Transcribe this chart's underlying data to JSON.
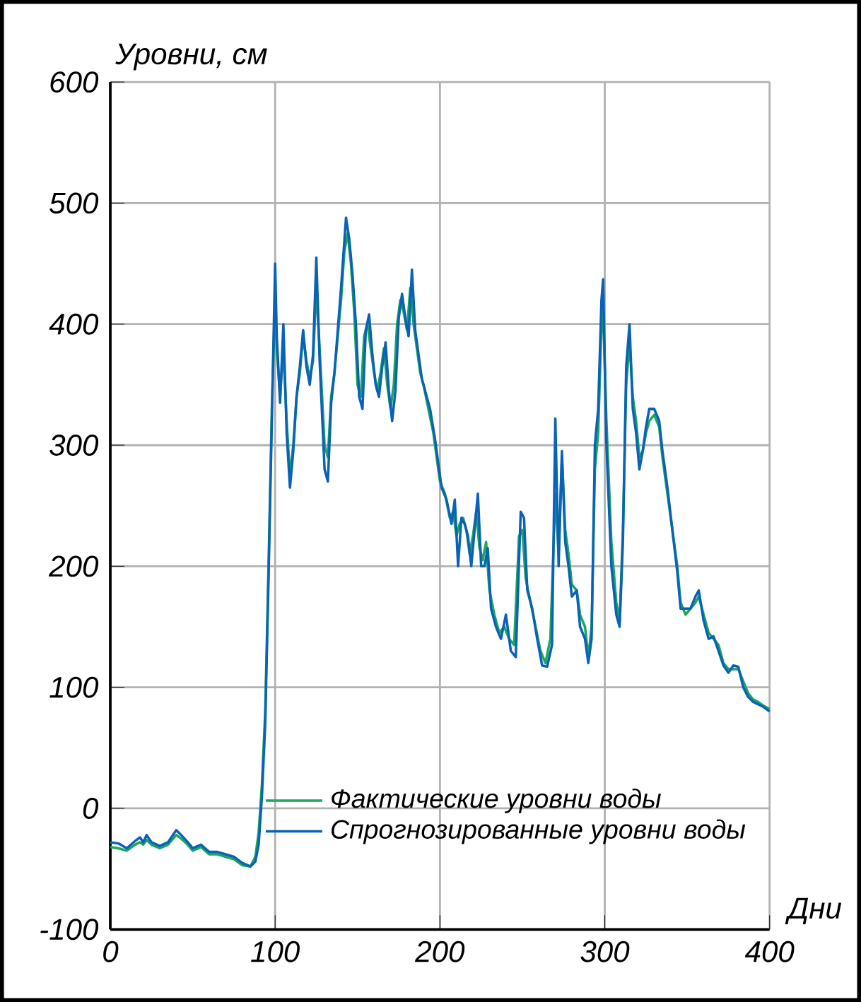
{
  "chart_data": {
    "type": "line",
    "ylabel": "Уровни, см",
    "xlabel": "Дни",
    "xlim": [
      0,
      400
    ],
    "xticks": [
      0,
      100,
      200,
      300,
      400
    ],
    "ylim": [
      -100,
      600
    ],
    "yticks": [
      -100,
      0,
      100,
      200,
      300,
      400,
      500,
      600
    ],
    "grid": true,
    "legend": "bottom right",
    "series": [
      {
        "name": "Фактические уровни воды",
        "color": "#1aa85a",
        "x": [
          0,
          5,
          10,
          15,
          18,
          20,
          22,
          25,
          30,
          35,
          40,
          43,
          47,
          50,
          55,
          60,
          65,
          70,
          75,
          80,
          85,
          88,
          90,
          92,
          94,
          96,
          98,
          100,
          101,
          103,
          105,
          107,
          109,
          111,
          113,
          115,
          117,
          119,
          121,
          123,
          125,
          127,
          130,
          132,
          134,
          136,
          138,
          140,
          142,
          144,
          146,
          148,
          150,
          152,
          154,
          156,
          158,
          160,
          162,
          164,
          166,
          168,
          170,
          172,
          174,
          176,
          178,
          180,
          182,
          184,
          186,
          188,
          190,
          193,
          196,
          198,
          200,
          203,
          206,
          208,
          210,
          212,
          214,
          216,
          218,
          220,
          222,
          224,
          226,
          228,
          230,
          233,
          236,
          239,
          242,
          245,
          248,
          250,
          252,
          255,
          258,
          261,
          264,
          267,
          270,
          272,
          274,
          276,
          278,
          280,
          283,
          285,
          288,
          290,
          292,
          294,
          296,
          298,
          299,
          301,
          304,
          307,
          309,
          311,
          313,
          315,
          317,
          319,
          321,
          323,
          325,
          327,
          330,
          333,
          335,
          338,
          341,
          344,
          346,
          349,
          352,
          355,
          357,
          360,
          363,
          366,
          369,
          372,
          375,
          378,
          381,
          384,
          387,
          390,
          393,
          396,
          400
        ],
        "values": [
          -32,
          -33,
          -35,
          -30,
          -28,
          -30,
          -26,
          -30,
          -33,
          -30,
          -22,
          -25,
          -30,
          -35,
          -32,
          -38,
          -38,
          -40,
          -42,
          -47,
          -48,
          -40,
          -20,
          20,
          80,
          200,
          330,
          420,
          380,
          340,
          380,
          320,
          275,
          300,
          340,
          360,
          390,
          370,
          355,
          370,
          430,
          380,
          300,
          290,
          340,
          360,
          390,
          420,
          460,
          475,
          450,
          410,
          350,
          340,
          390,
          400,
          380,
          360,
          345,
          360,
          380,
          350,
          330,
          350,
          400,
          420,
          410,
          395,
          430,
          400,
          380,
          360,
          350,
          330,
          310,
          290,
          270,
          260,
          240,
          245,
          225,
          235,
          240,
          230,
          210,
          225,
          245,
          215,
          205,
          220,
          180,
          160,
          145,
          150,
          140,
          135,
          225,
          230,
          190,
          170,
          150,
          130,
          120,
          140,
          260,
          210,
          290,
          230,
          210,
          185,
          180,
          160,
          150,
          125,
          150,
          280,
          310,
          400,
          410,
          320,
          220,
          170,
          155,
          230,
          350,
          385,
          340,
          320,
          290,
          295,
          310,
          320,
          325,
          315,
          290,
          260,
          230,
          200,
          170,
          160,
          165,
          170,
          175,
          160,
          145,
          140,
          135,
          120,
          115,
          115,
          115,
          105,
          95,
          90,
          88,
          85,
          82
        ]
      },
      {
        "name": "Спрогнозированные уровни воды",
        "color": "#0a62b8",
        "x": [
          0,
          5,
          10,
          15,
          18,
          20,
          22,
          25,
          30,
          35,
          40,
          43,
          47,
          50,
          55,
          60,
          65,
          70,
          75,
          80,
          85,
          88,
          90,
          92,
          94,
          96,
          98,
          100,
          101,
          103,
          105,
          107,
          109,
          111,
          113,
          115,
          117,
          119,
          121,
          123,
          125,
          127,
          130,
          132,
          134,
          136,
          138,
          140,
          143,
          145,
          147,
          149,
          151,
          153,
          155,
          157,
          159,
          161,
          163,
          165,
          167,
          169,
          171,
          173,
          175,
          177,
          179,
          181,
          183,
          185,
          187,
          189,
          191,
          194,
          197,
          199,
          201,
          204,
          207,
          209,
          211,
          213,
          215,
          217,
          219,
          221,
          223,
          225,
          227,
          229,
          231,
          234,
          237,
          240,
          243,
          246,
          249,
          251,
          253,
          256,
          259,
          262,
          265,
          268,
          270,
          272,
          274,
          276,
          278,
          280,
          283,
          285,
          288,
          290,
          292,
          294,
          296,
          298,
          299,
          301,
          304,
          307,
          309,
          311,
          313,
          315,
          317,
          319,
          321,
          323,
          325,
          327,
          330,
          333,
          335,
          338,
          341,
          344,
          346,
          349,
          352,
          355,
          357,
          360,
          363,
          366,
          369,
          372,
          375,
          378,
          381,
          384,
          387,
          390,
          393,
          396,
          400
        ],
        "values": [
          -28,
          -29,
          -33,
          -27,
          -24,
          -28,
          -22,
          -28,
          -31,
          -28,
          -18,
          -22,
          -28,
          -33,
          -30,
          -36,
          -36,
          -38,
          -40,
          -45,
          -48,
          -44,
          -30,
          10,
          70,
          190,
          320,
          450,
          390,
          335,
          400,
          310,
          265,
          295,
          340,
          365,
          395,
          365,
          350,
          375,
          455,
          370,
          280,
          270,
          335,
          360,
          395,
          430,
          488,
          470,
          440,
          400,
          340,
          330,
          395,
          408,
          375,
          350,
          340,
          365,
          385,
          345,
          320,
          345,
          405,
          425,
          405,
          390,
          445,
          395,
          375,
          355,
          345,
          330,
          305,
          285,
          265,
          255,
          235,
          255,
          200,
          240,
          235,
          225,
          200,
          230,
          260,
          200,
          200,
          215,
          165,
          150,
          140,
          160,
          130,
          125,
          245,
          240,
          180,
          165,
          140,
          118,
          117,
          135,
          322,
          200,
          295,
          220,
          200,
          175,
          180,
          150,
          140,
          120,
          140,
          300,
          330,
          420,
          437,
          300,
          200,
          160,
          150,
          220,
          365,
          400,
          330,
          310,
          280,
          295,
          315,
          330,
          330,
          320,
          295,
          265,
          230,
          195,
          165,
          165,
          165,
          175,
          180,
          155,
          140,
          142,
          130,
          118,
          112,
          118,
          117,
          100,
          92,
          88,
          86,
          84,
          80
        ]
      }
    ]
  }
}
